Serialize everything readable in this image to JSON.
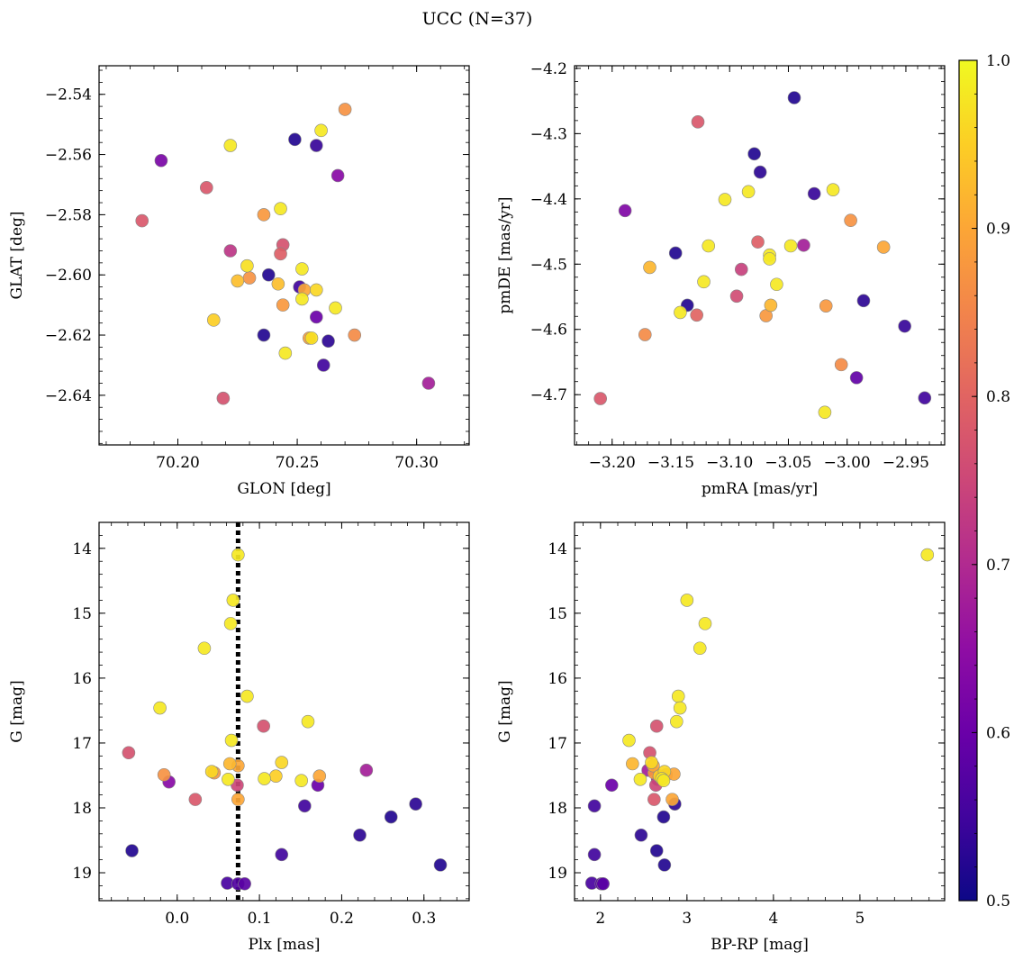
{
  "title": "UCC (N=37)",
  "colorbar": {
    "colormap": "plasma",
    "range": [
      0.5,
      1.0
    ],
    "ticks": [
      0.5,
      0.6,
      0.7,
      0.8,
      0.9,
      1.0
    ],
    "tick_labels": [
      "0.5",
      "0.6",
      "0.7",
      "0.8",
      "0.9",
      "1.0"
    ]
  },
  "chart_data": [
    {
      "type": "scatter",
      "xlabel": "GLON [deg]",
      "ylabel": "GLAT [deg]",
      "xlim": [
        70.167,
        70.322
      ],
      "ylim": [
        -2.6565,
        -2.5305
      ],
      "y_inverted": false,
      "xticks": [
        70.2,
        70.25,
        70.3
      ],
      "xtick_labels": [
        "70.20",
        "70.25",
        "70.30"
      ],
      "yticks": [
        -2.54,
        -2.56,
        -2.58,
        -2.6,
        -2.62,
        -2.64
      ],
      "ytick_labels": [
        "−2.54",
        "−2.56",
        "−2.58",
        "−2.60",
        "−2.62",
        "−2.64"
      ],
      "points": [
        {
          "x": 70.27,
          "y": -2.545,
          "c": 0.87
        },
        {
          "x": 70.26,
          "y": -2.552,
          "c": 0.98
        },
        {
          "x": 70.249,
          "y": -2.555,
          "c": 0.52
        },
        {
          "x": 70.258,
          "y": -2.557,
          "c": 0.54
        },
        {
          "x": 70.222,
          "y": -2.557,
          "c": 0.98
        },
        {
          "x": 70.193,
          "y": -2.562,
          "c": 0.62
        },
        {
          "x": 70.267,
          "y": -2.567,
          "c": 0.64
        },
        {
          "x": 70.212,
          "y": -2.571,
          "c": 0.78
        },
        {
          "x": 70.243,
          "y": -2.578,
          "c": 0.98
        },
        {
          "x": 70.236,
          "y": -2.58,
          "c": 0.88
        },
        {
          "x": 70.185,
          "y": -2.582,
          "c": 0.78
        },
        {
          "x": 70.244,
          "y": -2.59,
          "c": 0.77
        },
        {
          "x": 70.222,
          "y": -2.592,
          "c": 0.72
        },
        {
          "x": 70.243,
          "y": -2.593,
          "c": 0.79
        },
        {
          "x": 70.229,
          "y": -2.597,
          "c": 0.97
        },
        {
          "x": 70.252,
          "y": -2.598,
          "c": 0.98
        },
        {
          "x": 70.238,
          "y": -2.6,
          "c": 0.52
        },
        {
          "x": 70.23,
          "y": -2.601,
          "c": 0.87
        },
        {
          "x": 70.225,
          "y": -2.602,
          "c": 0.93
        },
        {
          "x": 70.242,
          "y": -2.603,
          "c": 0.93
        },
        {
          "x": 70.251,
          "y": -2.604,
          "c": 0.55
        },
        {
          "x": 70.253,
          "y": -2.605,
          "c": 0.9
        },
        {
          "x": 70.258,
          "y": -2.605,
          "c": 0.96
        },
        {
          "x": 70.252,
          "y": -2.608,
          "c": 0.98
        },
        {
          "x": 70.244,
          "y": -2.61,
          "c": 0.88
        },
        {
          "x": 70.266,
          "y": -2.611,
          "c": 0.98
        },
        {
          "x": 70.258,
          "y": -2.614,
          "c": 0.6
        },
        {
          "x": 70.215,
          "y": -2.615,
          "c": 0.95
        },
        {
          "x": 70.236,
          "y": -2.62,
          "c": 0.52
        },
        {
          "x": 70.274,
          "y": -2.62,
          "c": 0.86
        },
        {
          "x": 70.255,
          "y": -2.621,
          "c": 0.89
        },
        {
          "x": 70.256,
          "y": -2.621,
          "c": 0.97
        },
        {
          "x": 70.263,
          "y": -2.622,
          "c": 0.53
        },
        {
          "x": 70.245,
          "y": -2.626,
          "c": 0.98
        },
        {
          "x": 70.261,
          "y": -2.63,
          "c": 0.55
        },
        {
          "x": 70.305,
          "y": -2.636,
          "c": 0.68
        },
        {
          "x": 70.219,
          "y": -2.641,
          "c": 0.77
        }
      ]
    },
    {
      "type": "scatter",
      "xlabel": "pmRA [mas/yr]",
      "ylabel": "pmDE [mas/yr]",
      "xlim": [
        -3.232,
        -2.917
      ],
      "ylim": [
        -4.777,
        -4.196
      ],
      "y_inverted": false,
      "xticks": [
        -3.2,
        -3.15,
        -3.1,
        -3.05,
        -3.0,
        -2.95
      ],
      "xtick_labels": [
        "−3.20",
        "−3.15",
        "−3.10",
        "−3.05",
        "−3.00",
        "−2.95"
      ],
      "yticks": [
        -4.2,
        -4.3,
        -4.4,
        -4.5,
        -4.6,
        -4.7
      ],
      "ytick_labels": [
        "−4.2",
        "−4.3",
        "−4.4",
        "−4.5",
        "−4.6",
        "−4.7"
      ],
      "points": [
        {
          "x": -3.045,
          "y": -4.245,
          "c": 0.52
        },
        {
          "x": -3.127,
          "y": -4.282,
          "c": 0.78
        },
        {
          "x": -3.079,
          "y": -4.331,
          "c": 0.52
        },
        {
          "x": -3.074,
          "y": -4.359,
          "c": 0.53
        },
        {
          "x": -3.084,
          "y": -4.389,
          "c": 0.98
        },
        {
          "x": -3.028,
          "y": -4.392,
          "c": 0.54
        },
        {
          "x": -3.012,
          "y": -4.386,
          "c": 0.98
        },
        {
          "x": -3.104,
          "y": -4.401,
          "c": 0.98
        },
        {
          "x": -3.189,
          "y": -4.418,
          "c": 0.63
        },
        {
          "x": -2.997,
          "y": -4.433,
          "c": 0.87
        },
        {
          "x": -3.076,
          "y": -4.466,
          "c": 0.79
        },
        {
          "x": -3.037,
          "y": -4.471,
          "c": 0.68
        },
        {
          "x": -3.048,
          "y": -4.472,
          "c": 0.98
        },
        {
          "x": -3.118,
          "y": -4.472,
          "c": 0.98
        },
        {
          "x": -2.969,
          "y": -4.474,
          "c": 0.9
        },
        {
          "x": -3.146,
          "y": -4.483,
          "c": 0.52
        },
        {
          "x": -3.066,
          "y": -4.486,
          "c": 0.98
        },
        {
          "x": -3.066,
          "y": -4.492,
          "c": 0.98
        },
        {
          "x": -3.168,
          "y": -4.505,
          "c": 0.92
        },
        {
          "x": -3.09,
          "y": -4.508,
          "c": 0.74
        },
        {
          "x": -3.122,
          "y": -4.527,
          "c": 0.98
        },
        {
          "x": -3.06,
          "y": -4.531,
          "c": 0.98
        },
        {
          "x": -3.094,
          "y": -4.549,
          "c": 0.76
        },
        {
          "x": -2.986,
          "y": -4.556,
          "c": 0.53
        },
        {
          "x": -3.136,
          "y": -4.563,
          "c": 0.52
        },
        {
          "x": -3.065,
          "y": -4.563,
          "c": 0.92
        },
        {
          "x": -3.018,
          "y": -4.564,
          "c": 0.88
        },
        {
          "x": -3.142,
          "y": -4.574,
          "c": 0.98
        },
        {
          "x": -3.128,
          "y": -4.578,
          "c": 0.8
        },
        {
          "x": -3.069,
          "y": -4.579,
          "c": 0.88
        },
        {
          "x": -2.951,
          "y": -4.595,
          "c": 0.54
        },
        {
          "x": -3.172,
          "y": -4.608,
          "c": 0.86
        },
        {
          "x": -3.005,
          "y": -4.654,
          "c": 0.86
        },
        {
          "x": -2.992,
          "y": -4.674,
          "c": 0.59
        },
        {
          "x": -3.21,
          "y": -4.706,
          "c": 0.78
        },
        {
          "x": -2.934,
          "y": -4.705,
          "c": 0.55
        },
        {
          "x": -3.019,
          "y": -4.727,
          "c": 0.98
        }
      ]
    },
    {
      "type": "scatter",
      "xlabel": "Plx [mas]",
      "ylabel": "G [mag]",
      "xlim": [
        -0.095,
        0.355
      ],
      "ylim": [
        19.43,
        13.6
      ],
      "y_inverted": true,
      "vline": {
        "x": 0.074,
        "style": "dotted",
        "color": "#000000"
      },
      "xticks": [
        0.0,
        0.1,
        0.2,
        0.3
      ],
      "xtick_labels": [
        "0.0",
        "0.1",
        "0.2",
        "0.3"
      ],
      "yticks": [
        14,
        15,
        16,
        17,
        18,
        19
      ],
      "ytick_labels": [
        "14",
        "15",
        "16",
        "17",
        "18",
        "19"
      ],
      "points": [
        {
          "x": 0.074,
          "y": 14.1,
          "c": 0.98
        },
        {
          "x": 0.068,
          "y": 14.8,
          "c": 0.98
        },
        {
          "x": 0.065,
          "y": 15.16,
          "c": 0.98
        },
        {
          "x": 0.033,
          "y": 15.54,
          "c": 0.98
        },
        {
          "x": 0.085,
          "y": 16.28,
          "c": 0.98
        },
        {
          "x": -0.021,
          "y": 16.46,
          "c": 0.98
        },
        {
          "x": 0.159,
          "y": 16.67,
          "c": 0.98
        },
        {
          "x": 0.105,
          "y": 16.74,
          "c": 0.77
        },
        {
          "x": 0.066,
          "y": 16.96,
          "c": 0.98
        },
        {
          "x": -0.059,
          "y": 17.15,
          "c": 0.77
        },
        {
          "x": 0.127,
          "y": 17.3,
          "c": 0.96
        },
        {
          "x": 0.064,
          "y": 17.32,
          "c": 0.92
        },
        {
          "x": 0.074,
          "y": 17.35,
          "c": 0.9
        },
        {
          "x": 0.23,
          "y": 17.42,
          "c": 0.68
        },
        {
          "x": 0.042,
          "y": 17.44,
          "c": 0.96
        },
        {
          "x": 0.045,
          "y": 17.46,
          "c": 0.88
        },
        {
          "x": -0.016,
          "y": 17.49,
          "c": 0.87
        },
        {
          "x": 0.173,
          "y": 17.51,
          "c": 0.9
        },
        {
          "x": 0.12,
          "y": 17.51,
          "c": 0.95
        },
        {
          "x": 0.106,
          "y": 17.55,
          "c": 0.98
        },
        {
          "x": 0.062,
          "y": 17.56,
          "c": 0.98
        },
        {
          "x": 0.151,
          "y": 17.58,
          "c": 0.98
        },
        {
          "x": -0.01,
          "y": 17.6,
          "c": 0.64
        },
        {
          "x": 0.073,
          "y": 17.65,
          "c": 0.75
        },
        {
          "x": 0.171,
          "y": 17.65,
          "c": 0.6
        },
        {
          "x": 0.022,
          "y": 17.87,
          "c": 0.78
        },
        {
          "x": 0.074,
          "y": 17.87,
          "c": 0.9
        },
        {
          "x": 0.29,
          "y": 17.94,
          "c": 0.53
        },
        {
          "x": 0.155,
          "y": 17.97,
          "c": 0.55
        },
        {
          "x": 0.26,
          "y": 18.14,
          "c": 0.52
        },
        {
          "x": 0.222,
          "y": 18.42,
          "c": 0.53
        },
        {
          "x": -0.055,
          "y": 18.66,
          "c": 0.52
        },
        {
          "x": 0.127,
          "y": 18.72,
          "c": 0.55
        },
        {
          "x": 0.32,
          "y": 18.88,
          "c": 0.52
        },
        {
          "x": 0.061,
          "y": 19.16,
          "c": 0.56
        },
        {
          "x": 0.082,
          "y": 19.17,
          "c": 0.58
        },
        {
          "x": 0.074,
          "y": 19.17,
          "c": 0.57
        }
      ]
    },
    {
      "type": "scatter",
      "xlabel": "BP-RP [mag]",
      "ylabel": "G [mag]",
      "xlim": [
        1.7,
        5.98
      ],
      "ylim": [
        19.43,
        13.6
      ],
      "y_inverted": true,
      "xticks": [
        2,
        3,
        4,
        5
      ],
      "xtick_labels": [
        "2",
        "3",
        "4",
        "5"
      ],
      "yticks": [
        14,
        15,
        16,
        17,
        18,
        19
      ],
      "ytick_labels": [
        "14",
        "15",
        "16",
        "17",
        "18",
        "19"
      ],
      "points": [
        {
          "x": 5.78,
          "y": 14.1,
          "c": 0.98
        },
        {
          "x": 3.0,
          "y": 14.8,
          "c": 0.98
        },
        {
          "x": 3.21,
          "y": 15.16,
          "c": 0.98
        },
        {
          "x": 3.15,
          "y": 15.54,
          "c": 0.98
        },
        {
          "x": 2.9,
          "y": 16.28,
          "c": 0.98
        },
        {
          "x": 2.92,
          "y": 16.46,
          "c": 0.98
        },
        {
          "x": 2.88,
          "y": 16.67,
          "c": 0.98
        },
        {
          "x": 2.65,
          "y": 16.74,
          "c": 0.77
        },
        {
          "x": 2.33,
          "y": 16.96,
          "c": 0.98
        },
        {
          "x": 2.57,
          "y": 17.15,
          "c": 0.77
        },
        {
          "x": 2.59,
          "y": 17.3,
          "c": 0.96
        },
        {
          "x": 2.37,
          "y": 17.32,
          "c": 0.92
        },
        {
          "x": 2.61,
          "y": 17.35,
          "c": 0.9
        },
        {
          "x": 2.55,
          "y": 17.42,
          "c": 0.68
        },
        {
          "x": 2.74,
          "y": 17.44,
          "c": 0.96
        },
        {
          "x": 2.62,
          "y": 17.46,
          "c": 0.88
        },
        {
          "x": 2.76,
          "y": 17.49,
          "c": 0.87
        },
        {
          "x": 2.85,
          "y": 17.48,
          "c": 0.9
        },
        {
          "x": 2.68,
          "y": 17.51,
          "c": 0.95
        },
        {
          "x": 2.71,
          "y": 17.55,
          "c": 0.98
        },
        {
          "x": 2.46,
          "y": 17.56,
          "c": 0.98
        },
        {
          "x": 2.73,
          "y": 17.58,
          "c": 0.98
        },
        {
          "x": 2.66,
          "y": 17.56,
          "c": 0.64
        },
        {
          "x": 2.64,
          "y": 17.65,
          "c": 0.75
        },
        {
          "x": 2.13,
          "y": 17.65,
          "c": 0.6
        },
        {
          "x": 2.62,
          "y": 17.87,
          "c": 0.78
        },
        {
          "x": 2.83,
          "y": 17.87,
          "c": 0.9
        },
        {
          "x": 2.86,
          "y": 17.94,
          "c": 0.53
        },
        {
          "x": 1.93,
          "y": 17.97,
          "c": 0.55
        },
        {
          "x": 2.73,
          "y": 18.14,
          "c": 0.52
        },
        {
          "x": 2.47,
          "y": 18.42,
          "c": 0.53
        },
        {
          "x": 2.65,
          "y": 18.66,
          "c": 0.52
        },
        {
          "x": 1.93,
          "y": 18.72,
          "c": 0.55
        },
        {
          "x": 2.74,
          "y": 18.88,
          "c": 0.52
        },
        {
          "x": 1.9,
          "y": 19.16,
          "c": 0.56
        },
        {
          "x": 2.03,
          "y": 19.17,
          "c": 0.58
        },
        {
          "x": 2.01,
          "y": 19.17,
          "c": 0.57
        }
      ]
    }
  ]
}
